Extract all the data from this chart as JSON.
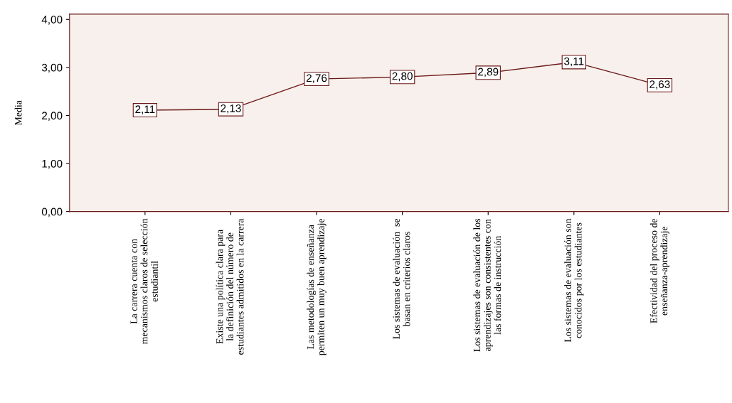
{
  "chart_data": {
    "type": "line",
    "ylabel": "Media",
    "categories": [
      "La carrera cuenta con\nmecanismos claros de selección\nestudiantil",
      "Existe una política clara para\nla definición del número de\nestudiantes admitidos en la carrera",
      "Las metodologías de enseñanza\npermiten un muy buen aprendizaje",
      "Los sistemas de evaluación  se\nbasan en criterios claros",
      "Los sistemas de evaluación de los\naprendizajes son consistentes con\nlas formas de instrucción",
      "Los sistemas de evaluación son\nconocidos por los estudiantes",
      "Efectividad del proceso de\nenseñanza-aprendizaje"
    ],
    "series": [
      {
        "color": "#6b1a1a",
        "values": [
          2.11,
          2.13,
          2.76,
          2.8,
          2.89,
          3.11,
          2.63
        ],
        "value_labels": [
          "2,11",
          "2,13",
          "2,76",
          "2,80",
          "2,89",
          "3,11",
          "2,63"
        ]
      }
    ],
    "ylim": [
      0,
      4.11
    ],
    "yticks": [
      {
        "value": 0,
        "label": "0,00"
      },
      {
        "value": 1,
        "label": "1,00"
      },
      {
        "value": 2,
        "label": "2,00"
      },
      {
        "value": 3,
        "label": "3,00"
      },
      {
        "value": 4,
        "label": "4,00"
      }
    ],
    "grid": false,
    "legend": false,
    "marker": "square",
    "line_style": "solid"
  }
}
